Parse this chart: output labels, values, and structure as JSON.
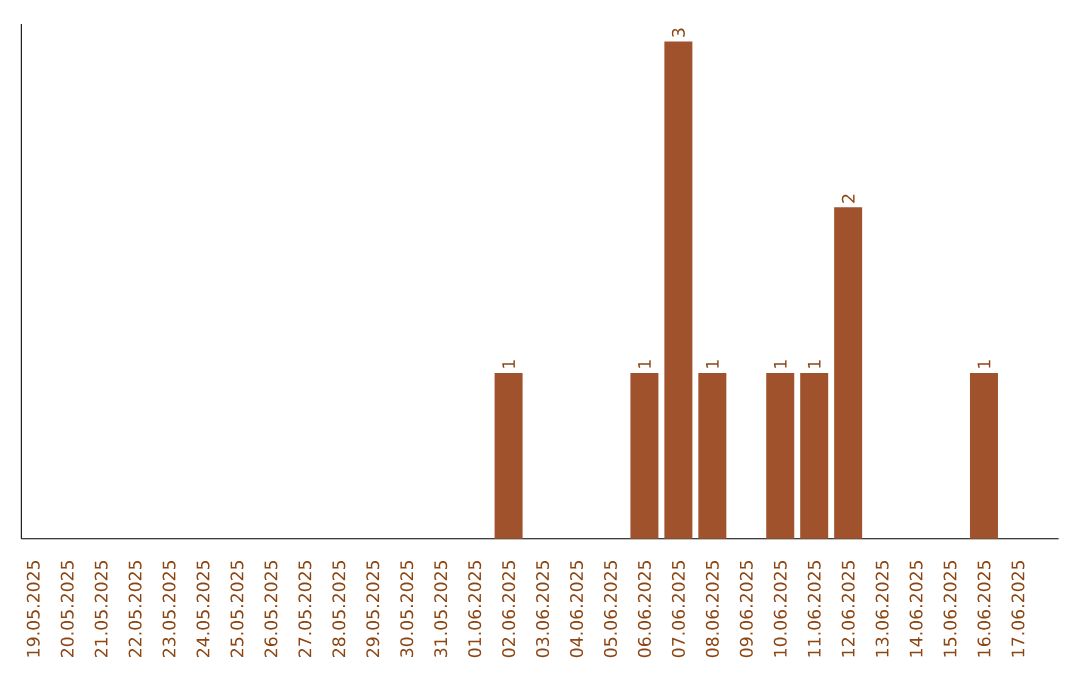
{
  "chart_data": {
    "type": "bar",
    "categories": [
      "19.05.2025",
      "20.05.2025",
      "21.05.2025",
      "22.05.2025",
      "23.05.2025",
      "24.05.2025",
      "25.05.2025",
      "26.05.2025",
      "27.05.2025",
      "28.05.2025",
      "29.05.2025",
      "30.05.2025",
      "31.05.2025",
      "01.06.2025",
      "02.06.2025",
      "03.06.2025",
      "04.06.2025",
      "05.06.2025",
      "06.06.2025",
      "07.06.2025",
      "08.06.2025",
      "09.06.2025",
      "10.06.2025",
      "11.06.2025",
      "12.06.2025",
      "13.06.2025",
      "14.06.2025",
      "15.06.2025",
      "16.06.2025",
      "17.06.2025"
    ],
    "values": [
      null,
      null,
      null,
      null,
      null,
      null,
      null,
      null,
      null,
      null,
      null,
      null,
      null,
      null,
      1,
      null,
      null,
      null,
      1,
      3,
      1,
      null,
      1,
      1,
      2,
      null,
      null,
      null,
      1,
      null
    ],
    "color": "#a0522d",
    "data_labels": true,
    "tick_labels": "x",
    "grid": false
  }
}
